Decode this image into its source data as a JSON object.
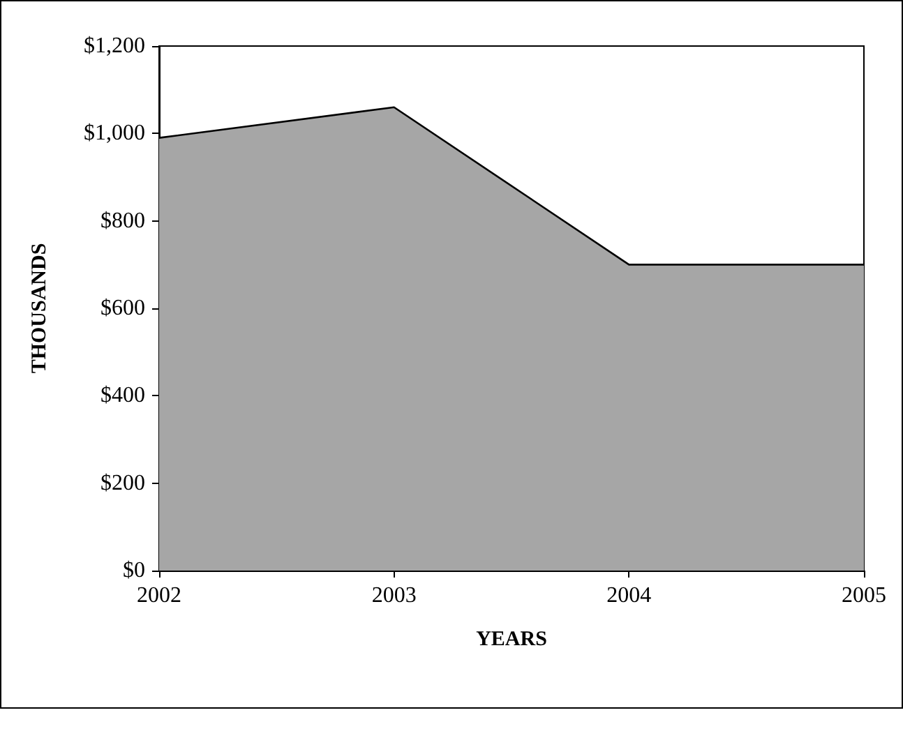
{
  "chart_data": {
    "type": "area",
    "xlabel": "YEARS",
    "ylabel": "THOUSANDS",
    "categories": [
      "2002",
      "2003",
      "2004",
      "2005"
    ],
    "series": [
      {
        "color": "#a6a6a6",
        "values": [
          990,
          1060,
          700,
          700
        ]
      }
    ],
    "ylim": [
      0,
      1200
    ],
    "yticks": [
      {
        "value": 0,
        "label": "$0"
      },
      {
        "value": 200,
        "label": "$200"
      },
      {
        "value": 400,
        "label": "$400"
      },
      {
        "value": 600,
        "label": "$600"
      },
      {
        "value": 800,
        "label": "$800"
      },
      {
        "value": 1000,
        "label": "$1,000"
      },
      {
        "value": 1200,
        "label": "$1,200"
      }
    ],
    "grid": false
  }
}
